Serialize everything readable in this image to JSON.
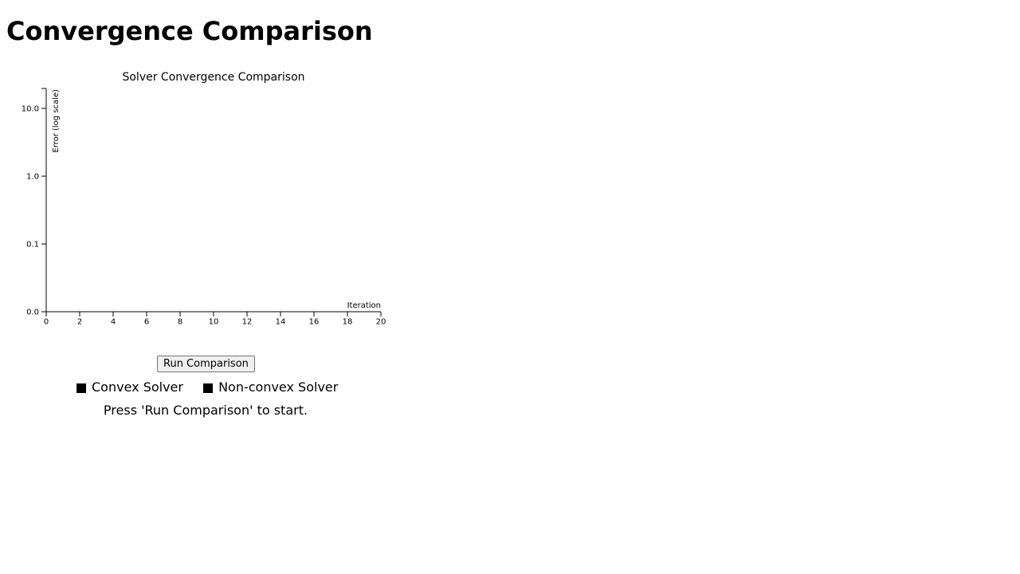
{
  "page": {
    "title": "Convergence Comparison"
  },
  "chart_data": {
    "type": "line",
    "title": "Solver Convergence Comparison",
    "xlabel": "Iteration",
    "ylabel": "Error (log scale)",
    "xlim": [
      0,
      20
    ],
    "x_ticks": [
      0,
      2,
      4,
      6,
      8,
      10,
      12,
      14,
      16,
      18,
      20
    ],
    "y_scale": "log",
    "y_ticks": [
      "0.0",
      "0.1",
      "1.0",
      "10.0"
    ],
    "grid": false,
    "series": [
      {
        "name": "Convex Solver",
        "color": "#000000",
        "x": [],
        "y": []
      },
      {
        "name": "Non-convex Solver",
        "color": "#000000",
        "x": [],
        "y": []
      }
    ]
  },
  "controls": {
    "run_button_label": "Run Comparison"
  },
  "legend": {
    "marker": "■",
    "items": [
      "Convex Solver",
      "Non-convex Solver"
    ]
  },
  "status": {
    "message": "Press 'Run Comparison' to start."
  }
}
